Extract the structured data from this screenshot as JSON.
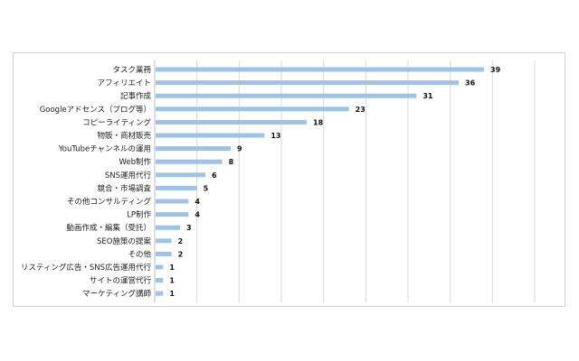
{
  "chart_data": {
    "type": "bar",
    "orientation": "horizontal",
    "categories": [
      "タスク業務",
      "アフィリエイト",
      "記事作成",
      "Googleアドセンス（ブログ等）",
      "コピーライティング",
      "物販・商材販売",
      "YouTubeチャンネルの運用",
      "Web制作",
      "SNS運用代行",
      "競合・市場調査",
      "その他コンサルティング",
      "LP制作",
      "動画作成・編集（受託）",
      "SEO施策の提案",
      "その他",
      "リスティング広告・SNS広告運用代行",
      "サイトの運営代行",
      "マーケティング講師"
    ],
    "values": [
      39,
      36,
      31,
      23,
      18,
      13,
      9,
      8,
      6,
      5,
      4,
      4,
      3,
      2,
      2,
      1,
      1,
      1
    ],
    "xlim": [
      0,
      45
    ],
    "grid": true,
    "bar_color": "#9dc3e6",
    "data_labels": true
  }
}
